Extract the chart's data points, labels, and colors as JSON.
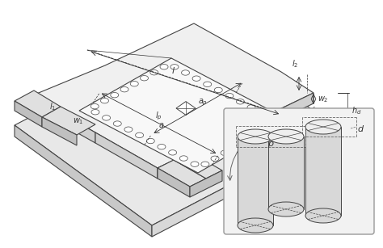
{
  "bg_color": "#ffffff",
  "lc": "#444444",
  "lc_dark": "#222222",
  "fc_board_top": "#e8e8e8",
  "fc_board_side_front": "#c8c8c8",
  "fc_board_side_right": "#d8d8d8",
  "fc_sub_top": "#f0f0f0",
  "fc_sub_side": "#d0d0d0",
  "fc_cavity": "#f8f8f8",
  "fc_port": "#e0e0e0",
  "fc_port_side": "#c0c0c0",
  "fc_inset": "#f2f2f2",
  "ec_inset": "#999999",
  "fc_cyl_top": "#e0e0e0",
  "fc_cyl_side": "#d0d0d0",
  "figsize": [
    4.74,
    3.07
  ],
  "dpi": 100
}
